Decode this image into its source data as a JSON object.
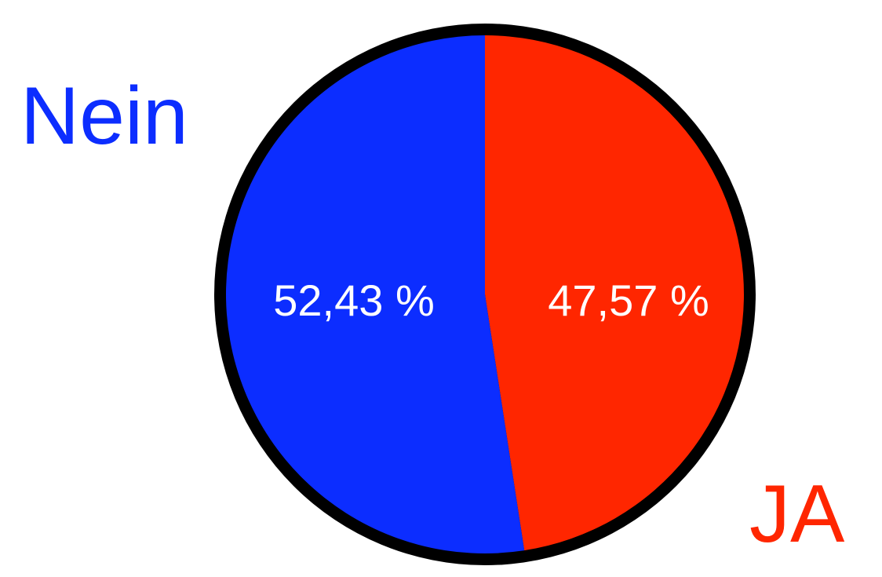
{
  "chart_data": {
    "type": "pie",
    "categories": [
      "Nein",
      "JA"
    ],
    "values": [
      52.43,
      47.57
    ],
    "data_labels": [
      "52,43 %",
      "47,57 %"
    ],
    "colors": [
      "#0c2dff",
      "#ff2600"
    ],
    "legend": "none (category names shown as large labels: Nein top-left, JA bottom-right)",
    "title": "",
    "xlabel": "",
    "ylabel": ""
  }
}
